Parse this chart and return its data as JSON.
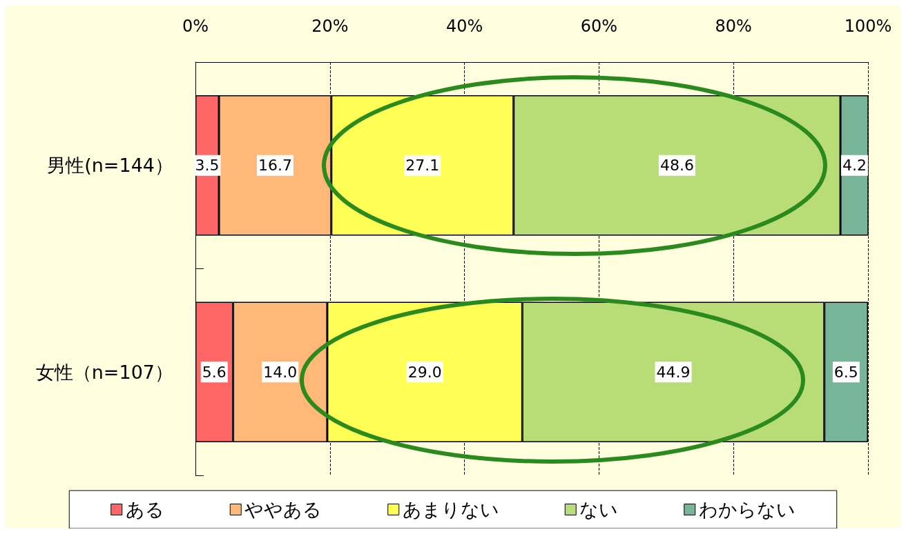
{
  "chart_data": {
    "type": "bar",
    "orientation": "horizontal",
    "stacked": true,
    "categories": [
      "男性(n=144）",
      "女性（n=107）"
    ],
    "series": [
      {
        "name": "ある",
        "color": "#ff6666",
        "values": [
          3.5,
          5.6
        ],
        "value_labels": [
          "3.5",
          "5.6"
        ]
      },
      {
        "name": "ややある",
        "color": "#ffb877",
        "values": [
          16.7,
          14.0
        ],
        "value_labels": [
          "16.7",
          "14.0"
        ]
      },
      {
        "name": "あまりない",
        "color": "#ffff55",
        "values": [
          27.1,
          29.0
        ],
        "value_labels": [
          "27.1",
          "29.0"
        ]
      },
      {
        "name": "ない",
        "color": "#b8dd77",
        "values": [
          48.6,
          44.9
        ],
        "value_labels": [
          "48.6",
          "44.9"
        ]
      },
      {
        "name": "わからない",
        "color": "#77b599",
        "values": [
          4.2,
          6.5
        ],
        "value_labels": [
          "4.2",
          "6.5"
        ]
      }
    ],
    "xlim": [
      0,
      100
    ],
    "xticks": [
      {
        "value": 0,
        "label": "0%"
      },
      {
        "value": 20,
        "label": "20%"
      },
      {
        "value": 40,
        "label": "40%"
      },
      {
        "value": 60,
        "label": "60%"
      },
      {
        "value": 80,
        "label": "80%"
      },
      {
        "value": 100,
        "label": "100%"
      }
    ],
    "grid": "x",
    "legend": "bottom"
  }
}
